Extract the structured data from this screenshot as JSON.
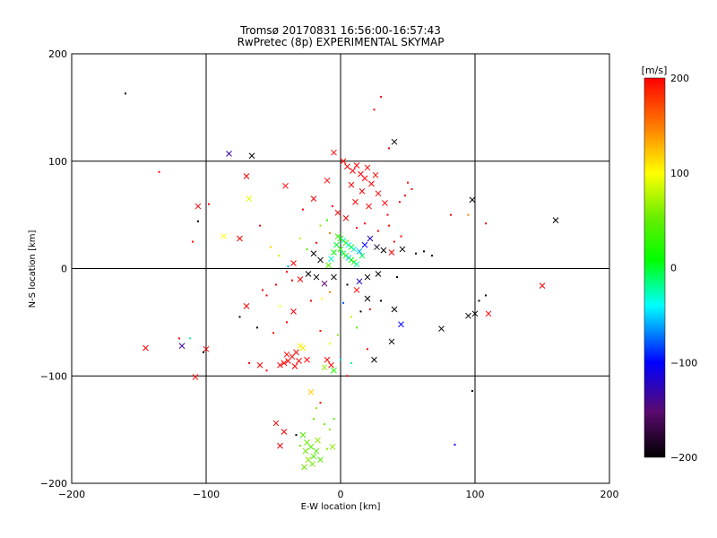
{
  "title_line1": "Tromsø 20170831 16:56:00-16:57:43",
  "title_line2": "RwPretec (8p) EXPERIMENTAL SKYMAP",
  "chart_data": {
    "type": "scatter",
    "xlabel": "E-W location [km]",
    "ylabel": "N-S location [km]",
    "xlim": [
      -200,
      200
    ],
    "ylim": [
      -200,
      200
    ],
    "xticks": [
      -200,
      -100,
      0,
      100,
      200
    ],
    "yticks": [
      -200,
      -100,
      0,
      100,
      200
    ],
    "grid": true,
    "colorbar": {
      "label": "[m/s]",
      "range": [
        -200,
        200
      ],
      "ticks": [
        200,
        100,
        0,
        -100,
        -200
      ],
      "colormap": "black-purple-blue-cyan-green-yellow-red"
    },
    "points": [
      {
        "x": -160,
        "y": 163,
        "v": -200,
        "m": "dot"
      },
      {
        "x": -83,
        "y": 107,
        "v": -130,
        "m": "x"
      },
      {
        "x": -66,
        "y": 105,
        "v": -200,
        "m": "x"
      },
      {
        "x": -70,
        "y": 86,
        "v": 200,
        "m": "x"
      },
      {
        "x": -106,
        "y": 58,
        "v": 200,
        "m": "x"
      },
      {
        "x": -106,
        "y": 44,
        "v": -200,
        "m": "dot"
      },
      {
        "x": -135,
        "y": 90,
        "v": 200,
        "m": "dot"
      },
      {
        "x": -68,
        "y": 65,
        "v": 90,
        "m": "x"
      },
      {
        "x": -98,
        "y": 60,
        "v": 200,
        "m": "dot"
      },
      {
        "x": -110,
        "y": 25,
        "v": 200,
        "m": "dot"
      },
      {
        "x": -87,
        "y": 30,
        "v": 100,
        "m": "x"
      },
      {
        "x": -75,
        "y": 28,
        "v": 200,
        "m": "x"
      },
      {
        "x": -60,
        "y": 40,
        "v": 200,
        "m": "dot"
      },
      {
        "x": -52,
        "y": 20,
        "v": 120,
        "m": "dot"
      },
      {
        "x": -46,
        "y": 12,
        "v": 80,
        "m": "dot"
      },
      {
        "x": -41,
        "y": 77,
        "v": 200,
        "m": "x"
      },
      {
        "x": -39,
        "y": 2,
        "v": -60,
        "m": "dot"
      },
      {
        "x": -36,
        "y": -11,
        "v": 200,
        "m": "dot"
      },
      {
        "x": -28,
        "y": 55,
        "v": 200,
        "m": "dot"
      },
      {
        "x": -20,
        "y": 65,
        "v": 200,
        "m": "x"
      },
      {
        "x": -10,
        "y": 82,
        "v": 200,
        "m": "x"
      },
      {
        "x": -5,
        "y": 108,
        "v": 200,
        "m": "x"
      },
      {
        "x": 2,
        "y": 100,
        "v": 200,
        "m": "x"
      },
      {
        "x": 5,
        "y": 95,
        "v": 200,
        "m": "x"
      },
      {
        "x": 9,
        "y": 91,
        "v": 200,
        "m": "x"
      },
      {
        "x": 12,
        "y": 96,
        "v": 200,
        "m": "x"
      },
      {
        "x": 15,
        "y": 88,
        "v": 200,
        "m": "x"
      },
      {
        "x": 18,
        "y": 84,
        "v": 200,
        "m": "x"
      },
      {
        "x": 20,
        "y": 94,
        "v": 200,
        "m": "x"
      },
      {
        "x": 23,
        "y": 79,
        "v": 200,
        "m": "x"
      },
      {
        "x": 26,
        "y": 87,
        "v": 200,
        "m": "x"
      },
      {
        "x": 8,
        "y": 78,
        "v": 200,
        "m": "x"
      },
      {
        "x": 16,
        "y": 72,
        "v": 200,
        "m": "x"
      },
      {
        "x": 28,
        "y": 70,
        "v": 200,
        "m": "x"
      },
      {
        "x": 11,
        "y": 62,
        "v": 200,
        "m": "x"
      },
      {
        "x": 21,
        "y": 58,
        "v": 200,
        "m": "x"
      },
      {
        "x": 33,
        "y": 61,
        "v": 200,
        "m": "x"
      },
      {
        "x": -2,
        "y": 52,
        "v": 200,
        "m": "x"
      },
      {
        "x": 4,
        "y": 47,
        "v": 200,
        "m": "x"
      },
      {
        "x": 40,
        "y": 118,
        "v": -200,
        "m": "x"
      },
      {
        "x": 30,
        "y": 160,
        "v": 200,
        "m": "dot"
      },
      {
        "x": 25,
        "y": 148,
        "v": 200,
        "m": "dot"
      },
      {
        "x": 36,
        "y": 112,
        "v": 200,
        "m": "dot"
      },
      {
        "x": 50,
        "y": 80,
        "v": 200,
        "m": "dot"
      },
      {
        "x": 53,
        "y": 74,
        "v": 200,
        "m": "dot"
      },
      {
        "x": 48,
        "y": 68,
        "v": 200,
        "m": "dot"
      },
      {
        "x": 44,
        "y": 62,
        "v": 200,
        "m": "dot"
      },
      {
        "x": 98,
        "y": 64,
        "v": -200,
        "m": "x"
      },
      {
        "x": 160,
        "y": 45,
        "v": -200,
        "m": "x"
      },
      {
        "x": 108,
        "y": 42,
        "v": 200,
        "m": "dot"
      },
      {
        "x": -15,
        "y": 40,
        "v": 60,
        "m": "dot"
      },
      {
        "x": -8,
        "y": 33,
        "v": 150,
        "m": "dot"
      },
      {
        "x": -2,
        "y": 30,
        "v": 30,
        "m": "x"
      },
      {
        "x": 0,
        "y": 28,
        "v": 20,
        "m": "x"
      },
      {
        "x": 2,
        "y": 26,
        "v": -20,
        "m": "x"
      },
      {
        "x": 4,
        "y": 24,
        "v": 30,
        "m": "x"
      },
      {
        "x": 6,
        "y": 22,
        "v": -40,
        "m": "x"
      },
      {
        "x": 8,
        "y": 20,
        "v": 10,
        "m": "x"
      },
      {
        "x": 10,
        "y": 18,
        "v": -30,
        "m": "x"
      },
      {
        "x": 0,
        "y": 18,
        "v": 20,
        "m": "x"
      },
      {
        "x": 2,
        "y": 14,
        "v": -10,
        "m": "x"
      },
      {
        "x": 4,
        "y": 12,
        "v": 30,
        "m": "x"
      },
      {
        "x": 6,
        "y": 10,
        "v": -50,
        "m": "x"
      },
      {
        "x": 8,
        "y": 8,
        "v": 10,
        "m": "x"
      },
      {
        "x": 10,
        "y": 6,
        "v": 20,
        "m": "x"
      },
      {
        "x": 12,
        "y": 4,
        "v": -20,
        "m": "x"
      },
      {
        "x": -3,
        "y": 22,
        "v": 0,
        "m": "x"
      },
      {
        "x": -5,
        "y": 15,
        "v": 10,
        "m": "x"
      },
      {
        "x": -7,
        "y": 9,
        "v": -30,
        "m": "x"
      },
      {
        "x": -9,
        "y": 3,
        "v": 40,
        "m": "x"
      },
      {
        "x": 14,
        "y": 16,
        "v": -60,
        "m": "x"
      },
      {
        "x": 16,
        "y": 12,
        "v": -10,
        "m": "x"
      },
      {
        "x": 18,
        "y": 22,
        "v": -100,
        "m": "x"
      },
      {
        "x": 22,
        "y": 28,
        "v": -120,
        "m": "x"
      },
      {
        "x": 27,
        "y": 20,
        "v": -180,
        "m": "x"
      },
      {
        "x": 32,
        "y": 17,
        "v": -200,
        "m": "x"
      },
      {
        "x": 38,
        "y": 15,
        "v": 200,
        "m": "x"
      },
      {
        "x": 46,
        "y": 18,
        "v": -200,
        "m": "x"
      },
      {
        "x": 56,
        "y": 14,
        "v": -200,
        "m": "dot"
      },
      {
        "x": 62,
        "y": 16,
        "v": -200,
        "m": "dot"
      },
      {
        "x": 68,
        "y": 12,
        "v": -200,
        "m": "dot"
      },
      {
        "x": 42,
        "y": -8,
        "v": -200,
        "m": "dot"
      },
      {
        "x": 28,
        "y": -5,
        "v": -200,
        "m": "x"
      },
      {
        "x": 20,
        "y": -8,
        "v": -200,
        "m": "x"
      },
      {
        "x": 14,
        "y": -12,
        "v": -120,
        "m": "x"
      },
      {
        "x": 12,
        "y": -20,
        "v": 200,
        "m": "x"
      },
      {
        "x": 5,
        "y": -15,
        "v": -200,
        "m": "dot"
      },
      {
        "x": -5,
        "y": -8,
        "v": -200,
        "m": "x"
      },
      {
        "x": -12,
        "y": -14,
        "v": -150,
        "m": "x"
      },
      {
        "x": -18,
        "y": -8,
        "v": -200,
        "m": "x"
      },
      {
        "x": -24,
        "y": -5,
        "v": -200,
        "m": "x"
      },
      {
        "x": -30,
        "y": -10,
        "v": 200,
        "m": "x"
      },
      {
        "x": -15,
        "y": 8,
        "v": -200,
        "m": "x"
      },
      {
        "x": -20,
        "y": 14,
        "v": -200,
        "m": "x"
      },
      {
        "x": -35,
        "y": 5,
        "v": 200,
        "m": "x"
      },
      {
        "x": -40,
        "y": -3,
        "v": 200,
        "m": "dot"
      },
      {
        "x": -48,
        "y": -15,
        "v": 200,
        "m": "dot"
      },
      {
        "x": -55,
        "y": -25,
        "v": 200,
        "m": "dot"
      },
      {
        "x": -70,
        "y": -35,
        "v": 200,
        "m": "x"
      },
      {
        "x": -75,
        "y": -45,
        "v": -200,
        "m": "dot"
      },
      {
        "x": -62,
        "y": -55,
        "v": -200,
        "m": "dot"
      },
      {
        "x": -50,
        "y": -60,
        "v": 200,
        "m": "dot"
      },
      {
        "x": -40,
        "y": -50,
        "v": 200,
        "m": "dot"
      },
      {
        "x": -35,
        "y": -40,
        "v": 200,
        "m": "x"
      },
      {
        "x": -45,
        "y": -35,
        "v": 100,
        "m": "dot"
      },
      {
        "x": -58,
        "y": -20,
        "v": 200,
        "m": "dot"
      },
      {
        "x": 20,
        "y": -28,
        "v": -200,
        "m": "x"
      },
      {
        "x": 15,
        "y": -40,
        "v": -200,
        "m": "dot"
      },
      {
        "x": 22,
        "y": -38,
        "v": 200,
        "m": "dot"
      },
      {
        "x": 30,
        "y": -30,
        "v": -200,
        "m": "dot"
      },
      {
        "x": 40,
        "y": -38,
        "v": -200,
        "m": "x"
      },
      {
        "x": 45,
        "y": -52,
        "v": -100,
        "m": "x"
      },
      {
        "x": 38,
        "y": -68,
        "v": -200,
        "m": "x"
      },
      {
        "x": 25,
        "y": -85,
        "v": -200,
        "m": "x"
      },
      {
        "x": 20,
        "y": -75,
        "v": 200,
        "m": "dot"
      },
      {
        "x": 75,
        "y": -56,
        "v": -200,
        "m": "x"
      },
      {
        "x": 95,
        "y": -44,
        "v": -200,
        "m": "x"
      },
      {
        "x": 100,
        "y": -42,
        "v": -200,
        "m": "x"
      },
      {
        "x": 110,
        "y": -42,
        "v": 200,
        "m": "x"
      },
      {
        "x": 103,
        "y": -30,
        "v": -200,
        "m": "dot"
      },
      {
        "x": 108,
        "y": -25,
        "v": -200,
        "m": "dot"
      },
      {
        "x": 150,
        "y": -16,
        "v": 200,
        "m": "x"
      },
      {
        "x": 98,
        "y": -114,
        "v": -200,
        "m": "dot"
      },
      {
        "x": 85,
        "y": -164,
        "v": -100,
        "m": "dot"
      },
      {
        "x": -145,
        "y": -74,
        "v": 200,
        "m": "x"
      },
      {
        "x": -118,
        "y": -72,
        "v": -130,
        "m": "x"
      },
      {
        "x": -112,
        "y": -65,
        "v": -20,
        "m": "dot"
      },
      {
        "x": -100,
        "y": -75,
        "v": 200,
        "m": "x"
      },
      {
        "x": -102,
        "y": -78,
        "v": -200,
        "m": "dot"
      },
      {
        "x": -108,
        "y": -101,
        "v": 200,
        "m": "x"
      },
      {
        "x": -120,
        "y": -65,
        "v": 200,
        "m": "dot"
      },
      {
        "x": -30,
        "y": -72,
        "v": 100,
        "m": "x"
      },
      {
        "x": -28,
        "y": -74,
        "v": 110,
        "m": "x"
      },
      {
        "x": -33,
        "y": -78,
        "v": 200,
        "m": "x"
      },
      {
        "x": -36,
        "y": -82,
        "v": 200,
        "m": "x"
      },
      {
        "x": -39,
        "y": -86,
        "v": 200,
        "m": "x"
      },
      {
        "x": -42,
        "y": -88,
        "v": 200,
        "m": "x"
      },
      {
        "x": -31,
        "y": -86,
        "v": 200,
        "m": "x"
      },
      {
        "x": -34,
        "y": -91,
        "v": 200,
        "m": "x"
      },
      {
        "x": -45,
        "y": -90,
        "v": 200,
        "m": "x"
      },
      {
        "x": -40,
        "y": -80,
        "v": 200,
        "m": "x"
      },
      {
        "x": -25,
        "y": -85,
        "v": 200,
        "m": "x"
      },
      {
        "x": -60,
        "y": -90,
        "v": 200,
        "m": "x"
      },
      {
        "x": -68,
        "y": -88,
        "v": 200,
        "m": "dot"
      },
      {
        "x": -55,
        "y": -95,
        "v": 200,
        "m": "dot"
      },
      {
        "x": -10,
        "y": -85,
        "v": 200,
        "m": "x"
      },
      {
        "x": -7,
        "y": -90,
        "v": 200,
        "m": "x"
      },
      {
        "x": -5,
        "y": -95,
        "v": 20,
        "m": "x"
      },
      {
        "x": -12,
        "y": -92,
        "v": 60,
        "m": "x"
      },
      {
        "x": 0,
        "y": -85,
        "v": -50,
        "m": "dot"
      },
      {
        "x": 8,
        "y": -88,
        "v": -20,
        "m": "dot"
      },
      {
        "x": 5,
        "y": -100,
        "v": 200,
        "m": "dot"
      },
      {
        "x": -22,
        "y": -115,
        "v": 120,
        "m": "x"
      },
      {
        "x": -18,
        "y": -130,
        "v": 60,
        "m": "dot"
      },
      {
        "x": -15,
        "y": -125,
        "v": 200,
        "m": "dot"
      },
      {
        "x": -20,
        "y": -140,
        "v": 40,
        "m": "dot"
      },
      {
        "x": -12,
        "y": -145,
        "v": 40,
        "m": "dot"
      },
      {
        "x": -8,
        "y": -150,
        "v": 60,
        "m": "dot"
      },
      {
        "x": -5,
        "y": -140,
        "v": 40,
        "m": "dot"
      },
      {
        "x": -48,
        "y": -144,
        "v": 200,
        "m": "x"
      },
      {
        "x": -42,
        "y": -152,
        "v": 200,
        "m": "x"
      },
      {
        "x": -45,
        "y": -165,
        "v": 200,
        "m": "x"
      },
      {
        "x": -33,
        "y": -155,
        "v": -200,
        "m": "dot"
      },
      {
        "x": -28,
        "y": -155,
        "v": 40,
        "m": "x"
      },
      {
        "x": -25,
        "y": -162,
        "v": 50,
        "m": "x"
      },
      {
        "x": -22,
        "y": -166,
        "v": 40,
        "m": "x"
      },
      {
        "x": -26,
        "y": -170,
        "v": 50,
        "m": "x"
      },
      {
        "x": -20,
        "y": -175,
        "v": 40,
        "m": "x"
      },
      {
        "x": -24,
        "y": -178,
        "v": 60,
        "m": "x"
      },
      {
        "x": -18,
        "y": -170,
        "v": 40,
        "m": "x"
      },
      {
        "x": -21,
        "y": -182,
        "v": 50,
        "m": "x"
      },
      {
        "x": -17,
        "y": -160,
        "v": 60,
        "m": "x"
      },
      {
        "x": -27,
        "y": -185,
        "v": 50,
        "m": "x"
      },
      {
        "x": -15,
        "y": -178,
        "v": 40,
        "m": "x"
      },
      {
        "x": -10,
        "y": -168,
        "v": 60,
        "m": "dot"
      },
      {
        "x": -6,
        "y": -166,
        "v": 60,
        "m": "x"
      },
      {
        "x": -30,
        "y": -165,
        "v": 50,
        "m": "dot"
      },
      {
        "x": 82,
        "y": 50,
        "v": 200,
        "m": "dot"
      },
      {
        "x": 95,
        "y": 50,
        "v": 150,
        "m": "dot"
      },
      {
        "x": 28,
        "y": 35,
        "v": 200,
        "m": "dot"
      },
      {
        "x": 36,
        "y": 40,
        "v": 200,
        "m": "dot"
      },
      {
        "x": 45,
        "y": 30,
        "v": 200,
        "m": "dot"
      },
      {
        "x": 40,
        "y": 25,
        "v": 200,
        "m": "dot"
      },
      {
        "x": -30,
        "y": 28,
        "v": 80,
        "m": "dot"
      },
      {
        "x": -25,
        "y": 18,
        "v": 40,
        "m": "dot"
      },
      {
        "x": -18,
        "y": 24,
        "v": 200,
        "m": "dot"
      },
      {
        "x": -10,
        "y": 45,
        "v": 30,
        "m": "dot"
      },
      {
        "x": -6,
        "y": 58,
        "v": 200,
        "m": "dot"
      },
      {
        "x": 35,
        "y": 50,
        "v": 200,
        "m": "dot"
      },
      {
        "x": 12,
        "y": 38,
        "v": 200,
        "m": "dot"
      },
      {
        "x": 18,
        "y": 42,
        "v": 200,
        "m": "dot"
      },
      {
        "x": -22,
        "y": -30,
        "v": 200,
        "m": "dot"
      },
      {
        "x": -14,
        "y": -28,
        "v": 100,
        "m": "dot"
      },
      {
        "x": -8,
        "y": -22,
        "v": 150,
        "m": "dot"
      },
      {
        "x": 2,
        "y": -32,
        "v": -80,
        "m": "dot"
      },
      {
        "x": 8,
        "y": -45,
        "v": 80,
        "m": "dot"
      },
      {
        "x": 12,
        "y": -55,
        "v": 40,
        "m": "dot"
      },
      {
        "x": -2,
        "y": -62,
        "v": 60,
        "m": "dot"
      },
      {
        "x": -15,
        "y": -58,
        "v": 200,
        "m": "dot"
      },
      {
        "x": -8,
        "y": -70,
        "v": 100,
        "m": "dot"
      }
    ]
  }
}
